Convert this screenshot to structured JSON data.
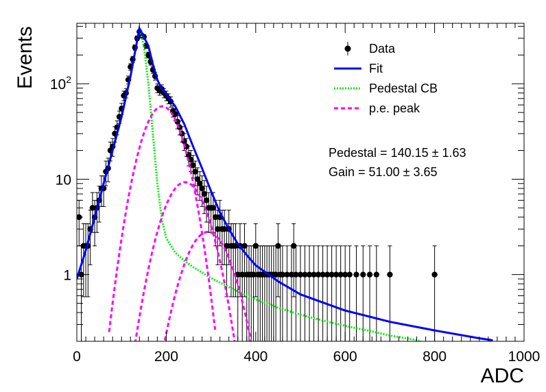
{
  "chart_data": {
    "type": "scatter",
    "xlabel": "ADC",
    "ylabel": "Events",
    "xlim": [
      0,
      1000
    ],
    "ylim": [
      0.2,
      430
    ],
    "yscale": "log",
    "xticks": [
      "0",
      "200",
      "400",
      "600",
      "800",
      "1000"
    ],
    "yticks": [
      {
        "value": 1,
        "base": "1",
        "exp": ""
      },
      {
        "value": 10,
        "base": "10",
        "exp": ""
      },
      {
        "value": 100,
        "base": "10",
        "exp": "2"
      }
    ],
    "legend": {
      "placement": "top-right",
      "entries": [
        {
          "label": "Data",
          "kind": "marker",
          "color": "#000000"
        },
        {
          "label": "Fit",
          "kind": "line",
          "color": "#0000ff"
        },
        {
          "label": "Pedestal CB",
          "kind": "dotted",
          "color": "#00ee00"
        },
        {
          "label": "p.e. peak",
          "kind": "dashed",
          "color": "#ff00ff"
        }
      ]
    },
    "annotations": [
      {
        "text": "Pedestal = 140.15 ± 1.63"
      },
      {
        "text": "Gain = 51.00 ± 3.65"
      }
    ],
    "data_points": [
      [
        5,
        4
      ],
      [
        10,
        1
      ],
      [
        15,
        2
      ],
      [
        20,
        2
      ],
      [
        25,
        2
      ],
      [
        30,
        3
      ],
      [
        35,
        5
      ],
      [
        40,
        4
      ],
      [
        45,
        5
      ],
      [
        50,
        6
      ],
      [
        55,
        8
      ],
      [
        60,
        8
      ],
      [
        65,
        12
      ],
      [
        70,
        13
      ],
      [
        75,
        20
      ],
      [
        80,
        22
      ],
      [
        85,
        30
      ],
      [
        90,
        35
      ],
      [
        95,
        45
      ],
      [
        100,
        55
      ],
      [
        105,
        75
      ],
      [
        110,
        80
      ],
      [
        115,
        110
      ],
      [
        120,
        150
      ],
      [
        125,
        180
      ],
      [
        130,
        240
      ],
      [
        135,
        300
      ],
      [
        140,
        350
      ],
      [
        145,
        320
      ],
      [
        150,
        310
      ],
      [
        155,
        250
      ],
      [
        160,
        200
      ],
      [
        165,
        170
      ],
      [
        170,
        140
      ],
      [
        175,
        120
      ],
      [
        180,
        90
      ],
      [
        185,
        85
      ],
      [
        190,
        88
      ],
      [
        195,
        80
      ],
      [
        200,
        75
      ],
      [
        205,
        70
      ],
      [
        210,
        65
      ],
      [
        215,
        52
      ],
      [
        220,
        48
      ],
      [
        225,
        40
      ],
      [
        230,
        35
      ],
      [
        235,
        30
      ],
      [
        240,
        25
      ],
      [
        245,
        22
      ],
      [
        250,
        18
      ],
      [
        255,
        16
      ],
      [
        260,
        14
      ],
      [
        265,
        12
      ],
      [
        270,
        10
      ],
      [
        275,
        9
      ],
      [
        280,
        8
      ],
      [
        285,
        7
      ],
      [
        290,
        6
      ],
      [
        295,
        5
      ],
      [
        300,
        5
      ],
      [
        305,
        5
      ],
      [
        310,
        4
      ],
      [
        315,
        3
      ],
      [
        320,
        4
      ],
      [
        325,
        3
      ],
      [
        330,
        3
      ],
      [
        335,
        2
      ],
      [
        340,
        3
      ],
      [
        345,
        2
      ],
      [
        350,
        2
      ],
      [
        355,
        2
      ],
      [
        360,
        1
      ],
      [
        365,
        2
      ],
      [
        370,
        1
      ],
      [
        375,
        2
      ],
      [
        380,
        1
      ],
      [
        385,
        1
      ],
      [
        390,
        1
      ],
      [
        395,
        1
      ],
      [
        400,
        2
      ],
      [
        405,
        1
      ],
      [
        410,
        1
      ],
      [
        415,
        1
      ],
      [
        420,
        1
      ],
      [
        425,
        1
      ],
      [
        430,
        1
      ],
      [
        435,
        1
      ],
      [
        440,
        1
      ],
      [
        445,
        1
      ],
      [
        450,
        2
      ],
      [
        455,
        1
      ],
      [
        460,
        1
      ],
      [
        470,
        1
      ],
      [
        480,
        1
      ],
      [
        485,
        2
      ],
      [
        490,
        1
      ],
      [
        500,
        1
      ],
      [
        510,
        1
      ],
      [
        520,
        1
      ],
      [
        530,
        1
      ],
      [
        540,
        1
      ],
      [
        550,
        1
      ],
      [
        560,
        1
      ],
      [
        570,
        1
      ],
      [
        580,
        1
      ],
      [
        590,
        1
      ],
      [
        600,
        1
      ],
      [
        610,
        1
      ],
      [
        625,
        1
      ],
      [
        640,
        1
      ],
      [
        655,
        1
      ],
      [
        670,
        1
      ],
      [
        700,
        1
      ],
      [
        800,
        1
      ]
    ],
    "fit": {
      "pedestal": 140.15,
      "pedestal_err": 1.63,
      "gain": 51.0,
      "gain_err": 3.65,
      "fit_curve": [
        [
          0,
          0.9
        ],
        [
          20,
          1.8
        ],
        [
          40,
          4
        ],
        [
          60,
          9
        ],
        [
          80,
          20
        ],
        [
          100,
          45
        ],
        [
          120,
          120
        ],
        [
          140,
          380
        ],
        [
          160,
          250
        ],
        [
          170,
          160
        ],
        [
          180,
          110
        ],
        [
          190,
          88
        ],
        [
          200,
          78
        ],
        [
          220,
          58
        ],
        [
          240,
          38
        ],
        [
          260,
          22
        ],
        [
          280,
          13
        ],
        [
          300,
          7.5
        ],
        [
          320,
          4.5
        ],
        [
          340,
          3
        ],
        [
          360,
          2.1
        ],
        [
          380,
          1.6
        ],
        [
          400,
          1.25
        ],
        [
          450,
          0.85
        ],
        [
          500,
          0.62
        ],
        [
          600,
          0.42
        ],
        [
          700,
          0.32
        ],
        [
          800,
          0.26
        ],
        [
          900,
          0.215
        ],
        [
          930,
          0.205
        ]
      ],
      "pedestal_cb_curve": [
        [
          0,
          0.9
        ],
        [
          20,
          1.8
        ],
        [
          40,
          4
        ],
        [
          60,
          9
        ],
        [
          80,
          20
        ],
        [
          100,
          45
        ],
        [
          120,
          120
        ],
        [
          140,
          380
        ],
        [
          150,
          250
        ],
        [
          160,
          100
        ],
        [
          170,
          30
        ],
        [
          180,
          9
        ],
        [
          190,
          3.8
        ],
        [
          200,
          2.4
        ],
        [
          220,
          1.7
        ],
        [
          240,
          1.4
        ],
        [
          260,
          1.2
        ],
        [
          280,
          1.05
        ],
        [
          300,
          0.92
        ],
        [
          350,
          0.7
        ],
        [
          400,
          0.55
        ],
        [
          450,
          0.45
        ],
        [
          500,
          0.38
        ],
        [
          550,
          0.33
        ],
        [
          600,
          0.29
        ],
        [
          650,
          0.26
        ],
        [
          700,
          0.23
        ],
        [
          750,
          0.21
        ],
        [
          770,
          0.2
        ]
      ],
      "pe_peaks": [
        {
          "mu": 191,
          "amp": 58,
          "sigma": 36
        },
        {
          "mu": 242,
          "amp": 9.3,
          "sigma": 40
        },
        {
          "mu": 293,
          "amp": 2.8,
          "sigma": 42
        }
      ]
    }
  }
}
